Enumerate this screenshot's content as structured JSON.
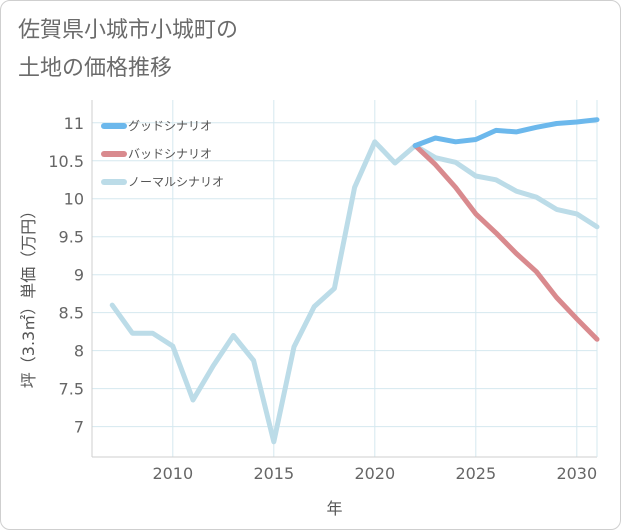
{
  "chart_data": {
    "type": "line",
    "title": "佐賀県小城市小城町の\n土地の価格推移",
    "xlabel": "年",
    "ylabel": "坪（3.3㎡）単価（万円）",
    "xlim": [
      2006,
      2031
    ],
    "ylim": [
      6.6,
      11.3
    ],
    "x_ticks": [
      2010,
      2015,
      2020,
      2025,
      2030
    ],
    "y_ticks": [
      7,
      7.5,
      8,
      8.5,
      9,
      9.5,
      10,
      10.5,
      11
    ],
    "grid": true,
    "legend_position": "top-left",
    "series": [
      {
        "name": "グッドシナリオ",
        "color": "#6cb8ec",
        "x": [
          2022,
          2023,
          2024,
          2025,
          2026,
          2027,
          2028,
          2029,
          2030,
          2031
        ],
        "values": [
          10.7,
          10.8,
          10.75,
          10.78,
          10.9,
          10.88,
          10.94,
          10.99,
          11.01,
          11.04
        ]
      },
      {
        "name": "バッドシナリオ",
        "color": "#d98a8e",
        "x": [
          2022,
          2023,
          2024,
          2025,
          2026,
          2027,
          2028,
          2029,
          2030,
          2031
        ],
        "values": [
          10.7,
          10.45,
          10.15,
          9.8,
          9.55,
          9.28,
          9.04,
          8.7,
          8.42,
          8.15
        ]
      },
      {
        "name": "ノーマルシナリオ",
        "color": "#bcdce8",
        "x": [
          2007,
          2008,
          2009,
          2010,
          2011,
          2012,
          2013,
          2014,
          2015,
          2016,
          2017,
          2018,
          2019,
          2020,
          2021,
          2022,
          2023,
          2024,
          2025,
          2026,
          2027,
          2028,
          2029,
          2030,
          2031
        ],
        "values": [
          8.6,
          8.23,
          8.23,
          8.06,
          7.35,
          7.8,
          8.2,
          7.87,
          6.8,
          8.05,
          8.58,
          8.82,
          10.15,
          10.75,
          10.47,
          10.7,
          10.54,
          10.48,
          10.3,
          10.25,
          10.1,
          10.02,
          9.86,
          9.8,
          9.63
        ]
      }
    ]
  }
}
